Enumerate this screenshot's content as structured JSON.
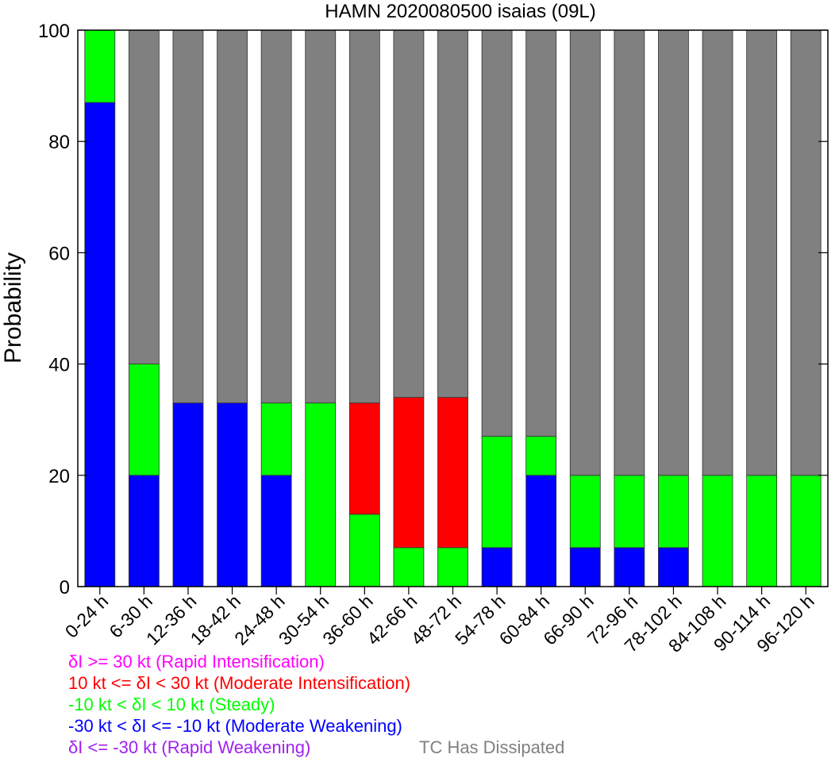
{
  "chart_data": {
    "type": "bar",
    "stacked": true,
    "title": "HAMN 2020080500 isaias (09L)",
    "ylabel": "Probability",
    "xlabel": "",
    "ylim": [
      0,
      100
    ],
    "yticks": [
      "0",
      "20",
      "40",
      "60",
      "80",
      "100"
    ],
    "grid": false,
    "categories": [
      "0-24 h",
      "6-30 h",
      "12-36 h",
      "18-42 h",
      "24-48 h",
      "30-54 h",
      "36-60 h",
      "42-66 h",
      "48-72 h",
      "54-78 h",
      "60-84 h",
      "66-90 h",
      "72-96 h",
      "78-102 h",
      "84-108 h",
      "90-114 h",
      "96-120 h"
    ],
    "series": [
      {
        "name": "δI <= -30 kt (Rapid Weakening)",
        "color": "#a020f0",
        "values": [
          0,
          0,
          0,
          0,
          0,
          0,
          0,
          0,
          0,
          0,
          0,
          0,
          0,
          0,
          0,
          0,
          0
        ]
      },
      {
        "name": "-30 kt < δI <= -10 kt (Moderate Weakening)",
        "color": "#0000ff",
        "values": [
          87,
          20,
          33,
          33,
          20,
          0,
          0,
          0,
          0,
          7,
          20,
          7,
          7,
          7,
          0,
          0,
          0
        ]
      },
      {
        "name": "-10 kt < δI < 10 kt (Steady)",
        "color": "#00ff00",
        "values": [
          13,
          20,
          0,
          0,
          13,
          33,
          13,
          7,
          7,
          20,
          7,
          13,
          13,
          13,
          20,
          20,
          20
        ]
      },
      {
        "name": "10 kt <= δI < 30 kt (Moderate Intensification)",
        "color": "#ff0000",
        "values": [
          0,
          0,
          0,
          0,
          0,
          0,
          20,
          27,
          27,
          0,
          0,
          0,
          0,
          0,
          0,
          0,
          0
        ]
      },
      {
        "name": "δI >= 30 kt (Rapid Intensification)",
        "color": "#ff00ff",
        "values": [
          0,
          0,
          0,
          0,
          0,
          0,
          0,
          0,
          0,
          0,
          0,
          0,
          0,
          0,
          0,
          0,
          0
        ]
      },
      {
        "name": "TC Has Dissipated",
        "color": "#808080",
        "values": [
          0,
          60,
          67,
          67,
          67,
          67,
          67,
          66,
          66,
          73,
          73,
          80,
          80,
          80,
          80,
          80,
          80
        ]
      }
    ]
  },
  "legend": [
    {
      "text": "δI >= 30 kt (Rapid Intensification)",
      "color": "#ff00ff"
    },
    {
      "text": "10 kt <= δI < 30 kt (Moderate Intensification)",
      "color": "#ff0000"
    },
    {
      "text": "-10 kt < δI < 10 kt (Steady)",
      "color": "#00ff00"
    },
    {
      "text": "-30 kt < δI <= -10 kt (Moderate Weakening)",
      "color": "#0000ff"
    },
    {
      "text": "δI <= -30 kt (Rapid Weakening)",
      "color": "#a020f0"
    },
    {
      "text": "TC Has Dissipated",
      "color": "#808080"
    }
  ]
}
